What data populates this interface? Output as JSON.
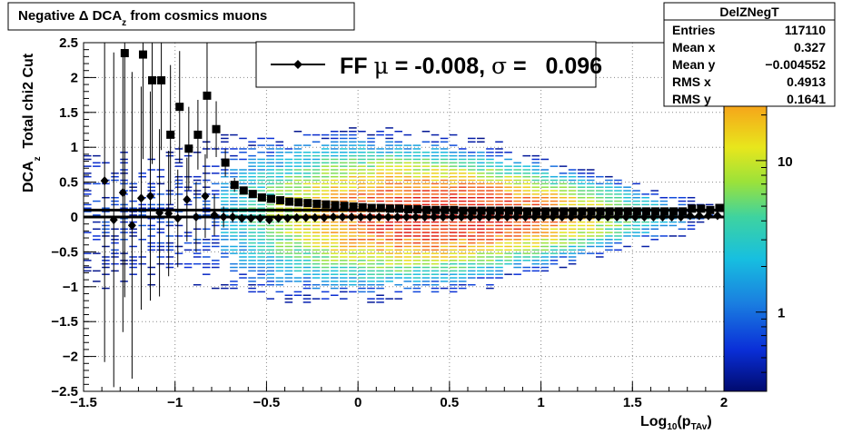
{
  "chart_data": {
    "type": "heatmap",
    "title_main": "Negative ",
    "title_symbol": "Δ",
    "title_dca": " DCA",
    "title_sub": "z",
    "title_rest": " from cosmics muons",
    "ylabel_main": "DCA",
    "ylabel_sub": "z",
    "ylabel_rest": "  Total chi2 Cut",
    "xlabel_main": "Log",
    "xlabel_sub": "10",
    "xlabel_paren": "(p",
    "xlabel_sub2": "TAv",
    "xlabel_close": ")",
    "xlim": [
      -1.5,
      2.0
    ],
    "ylim": [
      -2.5,
      2.5
    ],
    "x_ticks": [
      {
        "value": -1.5,
        "label": "−1.5"
      },
      {
        "value": -1.0,
        "label": "−1"
      },
      {
        "value": -0.5,
        "label": "−0.5"
      },
      {
        "value": 0.0,
        "label": "0"
      },
      {
        "value": 0.5,
        "label": "0.5"
      },
      {
        "value": 1.0,
        "label": "1"
      },
      {
        "value": 1.5,
        "label": "1.5"
      },
      {
        "value": 2.0,
        "label": "2"
      }
    ],
    "y_ticks": [
      {
        "value": 2.5,
        "label": "2.5"
      },
      {
        "value": 2.0,
        "label": "2"
      },
      {
        "value": 1.5,
        "label": "1.5"
      },
      {
        "value": 1.0,
        "label": "1"
      },
      {
        "value": 0.5,
        "label": "0.5"
      },
      {
        "value": 0.0,
        "label": "0"
      },
      {
        "value": -0.5,
        "label": "−0.5"
      },
      {
        "value": -1.0,
        "label": "−1"
      },
      {
        "value": -1.5,
        "label": "−1.5"
      },
      {
        "value": -2.0,
        "label": "−2"
      },
      {
        "value": -2.5,
        "label": "−2.5"
      }
    ],
    "grid": true,
    "legend": {
      "position": "top-center",
      "label_ff": "FF ",
      "label_mu": "μ",
      "label_mid": " = -0.008, ",
      "label_sigma": "σ",
      "label_end": " =   0.096"
    },
    "stats_box": {
      "title": "DelZNegT",
      "rows": [
        {
          "label": "Entries",
          "value": "117110"
        },
        {
          "label": "Mean x",
          "value": "0.327"
        },
        {
          "label": "Mean y",
          "value": "−0.004552"
        },
        {
          "label": "RMS x",
          "value": "0.4913"
        },
        {
          "label": "RMS y",
          "value": "0.1641"
        }
      ]
    },
    "colorbar": {
      "scale": "log",
      "range": [
        0.3,
        60
      ],
      "tick_labels": [
        {
          "value": 10,
          "label": "10"
        },
        {
          "value": 1,
          "label": "1"
        }
      ]
    },
    "fit_lines": [
      {
        "name": "",
        "y": 0.1
      },
      {
        "name": "",
        "y": 0.0
      }
    ],
    "profile_squares": [
      {
        "x": -1.275,
        "y": 2.35,
        "err": 3.5
      },
      {
        "x": -1.175,
        "y": 2.33,
        "err": 1.5
      },
      {
        "x": -1.125,
        "y": 1.96,
        "err": 1.2
      },
      {
        "x": -1.075,
        "y": 1.96,
        "err": 1.0
      },
      {
        "x": -1.025,
        "y": 1.18,
        "err": 1.0
      },
      {
        "x": -0.975,
        "y": 1.58,
        "err": 0.8
      },
      {
        "x": -0.925,
        "y": 0.98,
        "err": 0.6
      },
      {
        "x": -0.875,
        "y": 1.18,
        "err": 0.5
      },
      {
        "x": -0.825,
        "y": 1.74,
        "err": 0.9
      },
      {
        "x": -0.775,
        "y": 1.26,
        "err": 0.4
      },
      {
        "x": -0.725,
        "y": 0.78,
        "err": 0.2
      },
      {
        "x": -0.675,
        "y": 0.46,
        "err": 0.1
      },
      {
        "x": -0.625,
        "y": 0.38,
        "err": 0.05
      },
      {
        "x": -0.575,
        "y": 0.33,
        "err": 0.03
      },
      {
        "x": -0.525,
        "y": 0.28,
        "err": 0.02
      },
      {
        "x": -0.475,
        "y": 0.26,
        "err": 0.02
      },
      {
        "x": -0.425,
        "y": 0.24,
        "err": 0.02
      },
      {
        "x": -0.375,
        "y": 0.22,
        "err": 0.01
      },
      {
        "x": -0.325,
        "y": 0.21,
        "err": 0.01
      },
      {
        "x": -0.275,
        "y": 0.2,
        "err": 0.01
      },
      {
        "x": -0.225,
        "y": 0.19,
        "err": 0.01
      },
      {
        "x": -0.175,
        "y": 0.18,
        "err": 0.01
      },
      {
        "x": -0.125,
        "y": 0.17,
        "err": 0.01
      },
      {
        "x": -0.075,
        "y": 0.16,
        "err": 0.01
      },
      {
        "x": -0.025,
        "y": 0.15,
        "err": 0.01
      },
      {
        "x": 0.025,
        "y": 0.14,
        "err": 0.01
      },
      {
        "x": 0.075,
        "y": 0.13,
        "err": 0.01
      },
      {
        "x": 0.125,
        "y": 0.13,
        "err": 0.01
      },
      {
        "x": 0.175,
        "y": 0.12,
        "err": 0.01
      },
      {
        "x": 0.225,
        "y": 0.12,
        "err": 0.01
      },
      {
        "x": 0.275,
        "y": 0.11,
        "err": 0.01
      },
      {
        "x": 0.325,
        "y": 0.11,
        "err": 0.01
      },
      {
        "x": 0.375,
        "y": 0.1,
        "err": 0.01
      },
      {
        "x": 0.425,
        "y": 0.1,
        "err": 0.01
      },
      {
        "x": 0.475,
        "y": 0.1,
        "err": 0.01
      },
      {
        "x": 0.525,
        "y": 0.1,
        "err": 0.01
      },
      {
        "x": 0.575,
        "y": 0.09,
        "err": 0.01
      },
      {
        "x": 0.625,
        "y": 0.09,
        "err": 0.01
      },
      {
        "x": 0.675,
        "y": 0.09,
        "err": 0.01
      },
      {
        "x": 0.725,
        "y": 0.09,
        "err": 0.01
      },
      {
        "x": 0.775,
        "y": 0.09,
        "err": 0.01
      },
      {
        "x": 0.825,
        "y": 0.09,
        "err": 0.01
      },
      {
        "x": 0.875,
        "y": 0.09,
        "err": 0.01
      },
      {
        "x": 0.925,
        "y": 0.08,
        "err": 0.01
      },
      {
        "x": 0.975,
        "y": 0.08,
        "err": 0.01
      },
      {
        "x": 1.025,
        "y": 0.08,
        "err": 0.01
      },
      {
        "x": 1.075,
        "y": 0.08,
        "err": 0.01
      },
      {
        "x": 1.125,
        "y": 0.08,
        "err": 0.01
      },
      {
        "x": 1.175,
        "y": 0.08,
        "err": 0.01
      },
      {
        "x": 1.225,
        "y": 0.08,
        "err": 0.01
      },
      {
        "x": 1.275,
        "y": 0.08,
        "err": 0.01
      },
      {
        "x": 1.325,
        "y": 0.08,
        "err": 0.01
      },
      {
        "x": 1.375,
        "y": 0.08,
        "err": 0.01
      },
      {
        "x": 1.425,
        "y": 0.08,
        "err": 0.01
      },
      {
        "x": 1.475,
        "y": 0.08,
        "err": 0.01
      },
      {
        "x": 1.525,
        "y": 0.08,
        "err": 0.01
      },
      {
        "x": 1.575,
        "y": 0.08,
        "err": 0.01
      },
      {
        "x": 1.625,
        "y": 0.08,
        "err": 0.01
      },
      {
        "x": 1.675,
        "y": 0.08,
        "err": 0.01
      },
      {
        "x": 1.725,
        "y": 0.08,
        "err": 0.01
      },
      {
        "x": 1.775,
        "y": 0.08,
        "err": 0.02
      },
      {
        "x": 1.825,
        "y": 0.12,
        "err": 0.02
      },
      {
        "x": 1.875,
        "y": 0.12,
        "err": 0.02
      },
      {
        "x": 1.925,
        "y": 0.1,
        "err": 0.02
      },
      {
        "x": 1.975,
        "y": 0.13,
        "err": 0.03
      }
    ],
    "profile_diamonds": [
      {
        "x": -1.385,
        "y": 0.52,
        "err": 2.6
      },
      {
        "x": -1.335,
        "y": -0.04,
        "err": 2.4
      },
      {
        "x": -1.285,
        "y": 0.35,
        "err": 2.0
      },
      {
        "x": -1.235,
        "y": -0.12,
        "err": 2.2
      },
      {
        "x": -1.185,
        "y": 0.27,
        "err": 1.6
      },
      {
        "x": -1.135,
        "y": 0.3,
        "err": 1.5
      },
      {
        "x": -1.085,
        "y": 0.06,
        "err": 1.2
      },
      {
        "x": -1.035,
        "y": 0.05,
        "err": 0.9
      },
      {
        "x": -0.985,
        "y": -0.02,
        "err": 0.7
      },
      {
        "x": -0.935,
        "y": 0.25,
        "err": 0.6
      },
      {
        "x": -0.885,
        "y": 0.0,
        "err": 0.5
      },
      {
        "x": -0.835,
        "y": 0.3,
        "err": 0.6
      },
      {
        "x": -0.785,
        "y": 0.03,
        "err": 0.3
      },
      {
        "x": -0.735,
        "y": 0.0,
        "err": 0.15
      },
      {
        "x": -0.685,
        "y": 0.0,
        "err": 0.08
      },
      {
        "x": -0.635,
        "y": -0.02,
        "err": 0.05
      },
      {
        "x": -0.585,
        "y": -0.02,
        "err": 0.04
      },
      {
        "x": -0.535,
        "y": -0.02,
        "err": 0.03
      },
      {
        "x": -0.485,
        "y": -0.04,
        "err": 0.02
      },
      {
        "x": -0.435,
        "y": -0.02,
        "err": 0.02
      },
      {
        "x": -0.385,
        "y": -0.02,
        "err": 0.02
      },
      {
        "x": -0.335,
        "y": -0.01,
        "err": 0.01
      },
      {
        "x": -0.285,
        "y": -0.01,
        "err": 0.01
      },
      {
        "x": -0.235,
        "y": -0.01,
        "err": 0.01
      },
      {
        "x": -0.185,
        "y": -0.01,
        "err": 0.01
      },
      {
        "x": -0.135,
        "y": 0.0,
        "err": 0.01
      },
      {
        "x": -0.085,
        "y": 0.0,
        "err": 0.01
      },
      {
        "x": -0.035,
        "y": 0.0,
        "err": 0.01
      },
      {
        "x": 0.015,
        "y": 0.0,
        "err": 0.01
      },
      {
        "x": 0.065,
        "y": 0.0,
        "err": 0.01
      },
      {
        "x": 0.115,
        "y": 0.0,
        "err": 0.01
      },
      {
        "x": 0.165,
        "y": 0.0,
        "err": 0.01
      },
      {
        "x": 0.215,
        "y": 0.0,
        "err": 0.01
      },
      {
        "x": 0.265,
        "y": 0.0,
        "err": 0.01
      },
      {
        "x": 0.315,
        "y": 0.0,
        "err": 0.01
      },
      {
        "x": 0.365,
        "y": 0.0,
        "err": 0.01
      },
      {
        "x": 0.415,
        "y": 0.0,
        "err": 0.01
      },
      {
        "x": 0.465,
        "y": 0.0,
        "err": 0.01
      },
      {
        "x": 0.515,
        "y": 0.0,
        "err": 0.01
      },
      {
        "x": 0.565,
        "y": 0.0,
        "err": 0.01
      },
      {
        "x": 0.615,
        "y": 0.0,
        "err": 0.01
      },
      {
        "x": 0.665,
        "y": 0.0,
        "err": 0.01
      },
      {
        "x": 0.715,
        "y": 0.0,
        "err": 0.01
      },
      {
        "x": 0.765,
        "y": 0.0,
        "err": 0.01
      },
      {
        "x": 0.815,
        "y": 0.0,
        "err": 0.01
      },
      {
        "x": 0.865,
        "y": 0.0,
        "err": 0.01
      },
      {
        "x": 0.915,
        "y": 0.0,
        "err": 0.01
      },
      {
        "x": 0.965,
        "y": 0.0,
        "err": 0.01
      },
      {
        "x": 1.015,
        "y": 0.0,
        "err": 0.01
      },
      {
        "x": 1.065,
        "y": 0.0,
        "err": 0.01
      },
      {
        "x": 1.115,
        "y": 0.0,
        "err": 0.01
      },
      {
        "x": 1.165,
        "y": 0.0,
        "err": 0.01
      },
      {
        "x": 1.215,
        "y": 0.0,
        "err": 0.01
      },
      {
        "x": 1.265,
        "y": 0.0,
        "err": 0.01
      },
      {
        "x": 1.315,
        "y": 0.0,
        "err": 0.01
      },
      {
        "x": 1.365,
        "y": 0.0,
        "err": 0.01
      },
      {
        "x": 1.415,
        "y": 0.0,
        "err": 0.01
      },
      {
        "x": 1.465,
        "y": 0.0,
        "err": 0.01
      },
      {
        "x": 1.515,
        "y": 0.0,
        "err": 0.01
      },
      {
        "x": 1.565,
        "y": 0.0,
        "err": 0.01
      },
      {
        "x": 1.615,
        "y": 0.0,
        "err": 0.01
      },
      {
        "x": 1.665,
        "y": 0.0,
        "err": 0.01
      },
      {
        "x": 1.715,
        "y": 0.0,
        "err": 0.01
      },
      {
        "x": 1.765,
        "y": 0.0,
        "err": 0.02
      },
      {
        "x": 1.815,
        "y": 0.02,
        "err": 0.02
      },
      {
        "x": 1.865,
        "y": 0.02,
        "err": 0.02
      },
      {
        "x": 1.915,
        "y": 0.02,
        "err": 0.02
      },
      {
        "x": 1.965,
        "y": 0.02,
        "err": 0.03
      }
    ]
  }
}
